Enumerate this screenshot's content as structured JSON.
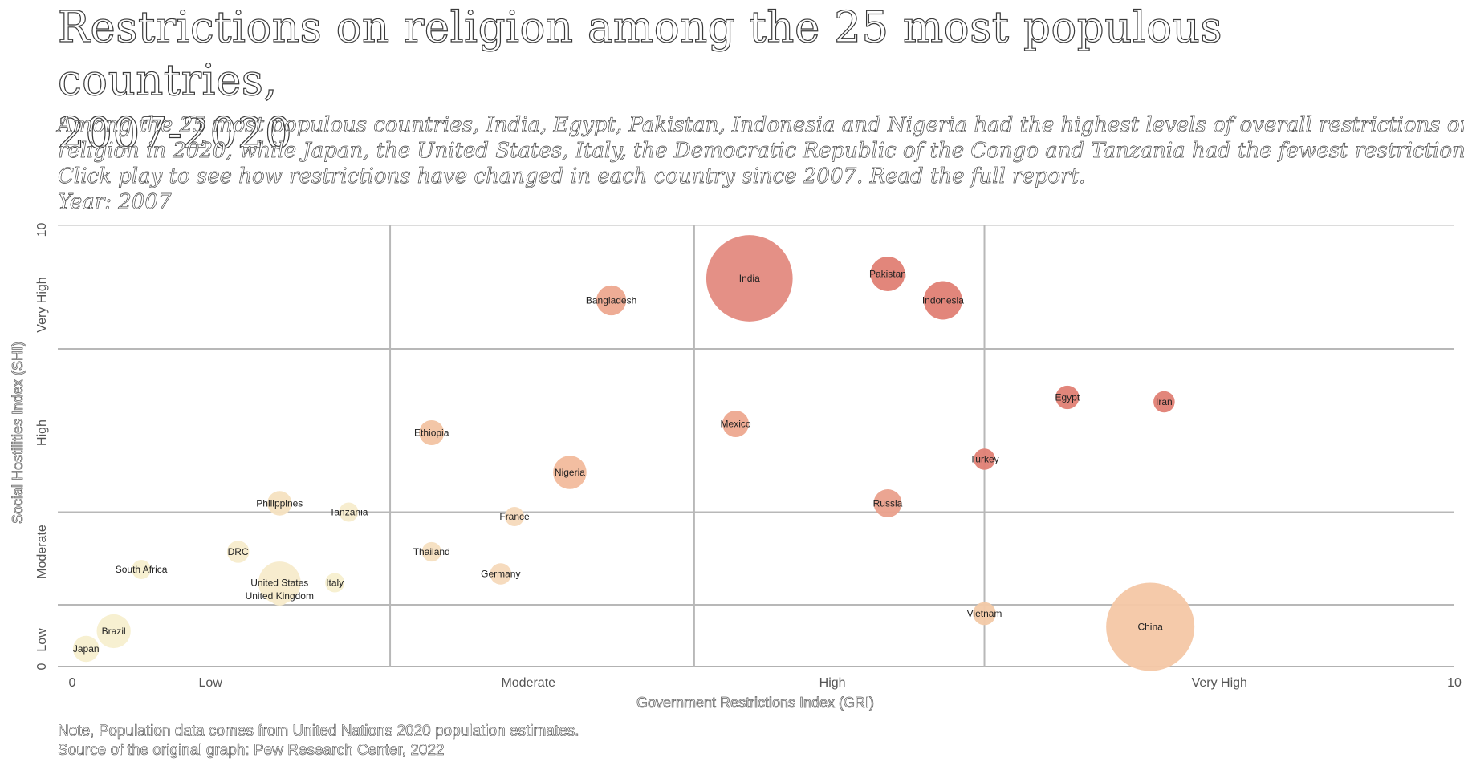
{
  "header": {
    "title_line1": "Restrictions on religion among the 25 most populous countries,",
    "title_line2": "2007-2020",
    "subtitle_lines": [
      "Among the 25 most populous countries, India, Egypt, Pakistan, Indonesia and Nigeria had the highest levels of overall restrictions on",
      "religion in 2020, while Japan, the United States, Italy, the Democratic Republic of the Congo and Tanzania had the fewest restrictions.",
      "Click play to see how restrictions have changed in each country since 2007. Read the full report."
    ],
    "year_label": "Year: 2007"
  },
  "footer": {
    "note": "Note, Population data comes from United Nations 2020 population estimates.",
    "source": "Source of the original graph: Pew Research Center, 2022"
  },
  "chart_data": {
    "type": "scatter",
    "xlabel": "Government Restrictions Index (GRI)",
    "ylabel": "Social Hostilities Index (SHI)",
    "xlim": [
      0,
      10
    ],
    "ylim": [
      0,
      10
    ],
    "x_ticks": [
      {
        "value": 0,
        "label": "0"
      },
      {
        "value": 1,
        "label": "Low"
      },
      {
        "value": 3.3,
        "label": "Moderate"
      },
      {
        "value": 5.5,
        "label": "High"
      },
      {
        "value": 8.3,
        "label": "Very High"
      },
      {
        "value": 10,
        "label": "10"
      }
    ],
    "y_ticks": [
      {
        "value": 0,
        "label": "0"
      },
      {
        "value": 0.6,
        "label": "Low"
      },
      {
        "value": 2.6,
        "label": "Moderate"
      },
      {
        "value": 5.3,
        "label": "High"
      },
      {
        "value": 8.2,
        "label": "Very High"
      },
      {
        "value": 9.9,
        "label": "10"
      }
    ],
    "x_grid": [
      2.3,
      4.5,
      6.6
    ],
    "y_grid": [
      1.4,
      3.5,
      7.2
    ],
    "grid": true,
    "colors": {
      "low": "#f7f0cf",
      "mid": "#f2c9a6",
      "high": "#e3847b"
    },
    "points": [
      {
        "country": "India",
        "x": 4.9,
        "y": 8.8,
        "population_m": 1380,
        "color": "#e38a80"
      },
      {
        "country": "Pakistan",
        "x": 5.9,
        "y": 8.9,
        "population_m": 221,
        "color": "#e07f74"
      },
      {
        "country": "Indonesia",
        "x": 6.3,
        "y": 8.3,
        "population_m": 274,
        "color": "#e07f74"
      },
      {
        "country": "Bangladesh",
        "x": 3.9,
        "y": 8.3,
        "population_m": 165,
        "color": "#eda88f"
      },
      {
        "country": "Egypt",
        "x": 7.2,
        "y": 6.1,
        "population_m": 102,
        "color": "#e07f74"
      },
      {
        "country": "Iran",
        "x": 7.9,
        "y": 6.0,
        "population_m": 84,
        "color": "#e07f74"
      },
      {
        "country": "Mexico",
        "x": 4.8,
        "y": 5.5,
        "population_m": 129,
        "color": "#eda88f"
      },
      {
        "country": "Ethiopia",
        "x": 2.6,
        "y": 5.3,
        "population_m": 115,
        "color": "#f2c3a2"
      },
      {
        "country": "Turkey",
        "x": 6.6,
        "y": 4.7,
        "population_m": 84,
        "color": "#e07f74"
      },
      {
        "country": "Nigeria",
        "x": 3.6,
        "y": 4.4,
        "population_m": 206,
        "color": "#f2bb9c"
      },
      {
        "country": "Russia",
        "x": 5.9,
        "y": 3.7,
        "population_m": 146,
        "color": "#eaa08c"
      },
      {
        "country": "Philippines",
        "x": 1.5,
        "y": 3.7,
        "population_m": 110,
        "color": "#f5e2c0"
      },
      {
        "country": "Tanzania",
        "x": 2.0,
        "y": 3.5,
        "population_m": 60,
        "color": "#f7eccc"
      },
      {
        "country": "France",
        "x": 3.2,
        "y": 3.4,
        "population_m": 65,
        "color": "#f5d9bb"
      },
      {
        "country": "DRC",
        "x": 1.2,
        "y": 2.6,
        "population_m": 90,
        "color": "#f7eccc"
      },
      {
        "country": "Thailand",
        "x": 2.6,
        "y": 2.6,
        "population_m": 70,
        "color": "#f5dfc0"
      },
      {
        "country": "South Africa",
        "x": 0.5,
        "y": 2.2,
        "population_m": 59,
        "color": "#f7efcf"
      },
      {
        "country": "Germany",
        "x": 3.1,
        "y": 2.1,
        "population_m": 84,
        "color": "#f5d9bb"
      },
      {
        "country": "United States",
        "x": 1.5,
        "y": 1.9,
        "population_m": 331,
        "color": "#f7ebcb"
      },
      {
        "country": "Italy",
        "x": 1.9,
        "y": 1.9,
        "population_m": 60,
        "color": "#f7efcf"
      },
      {
        "country": "United Kingdom",
        "x": 1.5,
        "y": 1.6,
        "population_m": 67,
        "color": "#f7ebcb"
      },
      {
        "country": "Vietnam",
        "x": 6.6,
        "y": 1.2,
        "population_m": 97,
        "color": "#f2c9a6"
      },
      {
        "country": "China",
        "x": 7.8,
        "y": 0.9,
        "population_m": 1440,
        "color": "#f4c7a5"
      },
      {
        "country": "Brazil",
        "x": 0.3,
        "y": 0.8,
        "population_m": 213,
        "color": "#f7efcf"
      },
      {
        "country": "Japan",
        "x": 0.1,
        "y": 0.4,
        "population_m": 126,
        "color": "#f7efcf"
      }
    ]
  }
}
